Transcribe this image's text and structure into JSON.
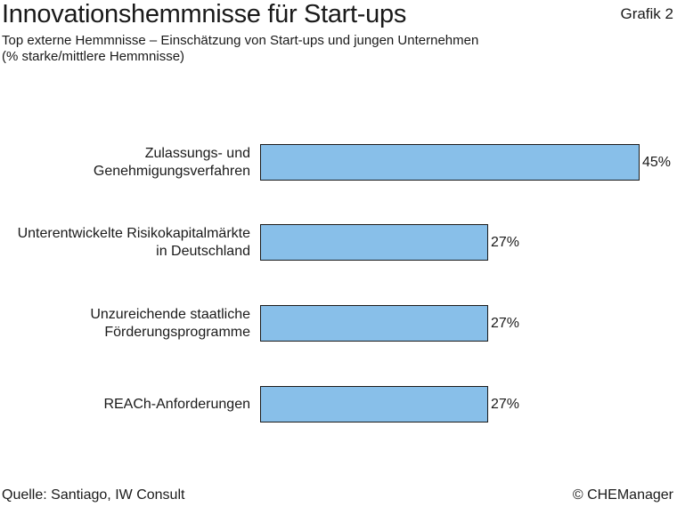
{
  "header": {
    "title": "Innovationshemmnisse für Start-ups",
    "grafik": "Grafik 2",
    "subtitle_line1": "Top externe Hemmnisse – Einschätzung von Start-ups und jungen Unternehmen",
    "subtitle_line2": "(% starke/mittlere Hemmnisse)"
  },
  "footer": {
    "source": "Quelle: Santiago, IW Consult",
    "copyright": "© CHEManager"
  },
  "chart_data": {
    "type": "bar",
    "orientation": "horizontal",
    "categories": [
      [
        "Zulassungs- und",
        "Genehmigungsverfahren"
      ],
      [
        "Unterentwickelte Risikokapitalmärkte",
        "in Deutschland"
      ],
      [
        "Unzureichende staatliche",
        "Förderungsprogramme"
      ],
      [
        "REACh-Anforderungen"
      ]
    ],
    "values": [
      45,
      27,
      27,
      27
    ],
    "value_labels": [
      "45%",
      "27%",
      "27%",
      "27%"
    ],
    "xlim": [
      0,
      45
    ],
    "grid": false,
    "bar_color": "#88bfe9",
    "bar_stroke": "#1a1a1a"
  }
}
